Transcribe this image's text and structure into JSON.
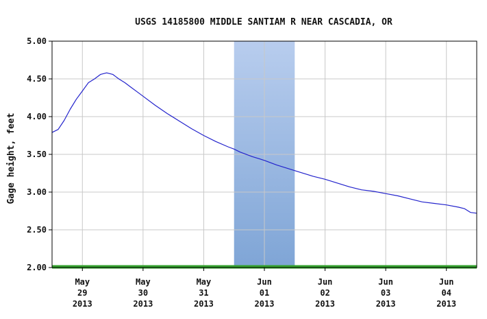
{
  "chart_data": {
    "type": "line",
    "title": "USGS 14185800 MIDDLE SANTIAM R NEAR CASCADIA, OR",
    "xlabel": "",
    "ylabel": "Gage height, feet",
    "ylim": [
      2.0,
      5.0
    ],
    "xlim_days": [
      -0.5,
      6.5
    ],
    "y_ticks": [
      "2.00",
      "2.50",
      "3.00",
      "3.50",
      "4.00",
      "4.50",
      "5.00"
    ],
    "x_ticks": [
      {
        "day": 0,
        "lines": [
          "May",
          "29",
          "2013"
        ]
      },
      {
        "day": 1,
        "lines": [
          "May",
          "30",
          "2013"
        ]
      },
      {
        "day": 2,
        "lines": [
          "May",
          "31",
          "2013"
        ]
      },
      {
        "day": 3,
        "lines": [
          "Jun",
          "01",
          "2013"
        ]
      },
      {
        "day": 4,
        "lines": [
          "Jun",
          "02",
          "2013"
        ]
      },
      {
        "day": 5,
        "lines": [
          "Jun",
          "03",
          "2013"
        ]
      },
      {
        "day": 6,
        "lines": [
          "Jun",
          "04",
          "2013"
        ]
      }
    ],
    "highlight_band_days": [
      2.5,
      3.5
    ],
    "grid": true,
    "colors": {
      "line": "#2222cc",
      "grid": "#c8c8c8",
      "baseline": "#33a02c",
      "band_top": "#b8cdee",
      "band_bottom": "#7fa5d6"
    },
    "series": [
      {
        "x": [
          -0.5,
          -0.4,
          -0.3,
          -0.2,
          -0.1,
          0.0,
          0.1,
          0.2,
          0.3,
          0.4,
          0.5,
          0.55,
          0.6,
          0.7,
          0.8,
          0.9,
          1.0,
          1.2,
          1.4,
          1.6,
          1.8,
          2.0,
          2.2,
          2.4,
          2.5,
          2.6,
          2.8,
          3.0,
          3.2,
          3.4,
          3.6,
          3.8,
          4.0,
          4.2,
          4.4,
          4.6,
          4.8,
          5.0,
          5.2,
          5.4,
          5.6,
          5.8,
          6.0,
          6.2,
          6.3,
          6.4,
          6.5
        ],
        "values": [
          3.79,
          3.83,
          3.95,
          4.1,
          4.23,
          4.34,
          4.45,
          4.5,
          4.56,
          4.58,
          4.56,
          4.53,
          4.5,
          4.45,
          4.39,
          4.33,
          4.27,
          4.15,
          4.04,
          3.94,
          3.84,
          3.75,
          3.67,
          3.6,
          3.57,
          3.53,
          3.47,
          3.42,
          3.36,
          3.31,
          3.26,
          3.21,
          3.17,
          3.12,
          3.07,
          3.03,
          3.01,
          2.98,
          2.95,
          2.91,
          2.87,
          2.85,
          2.83,
          2.8,
          2.78,
          2.73,
          2.72
        ]
      }
    ]
  }
}
